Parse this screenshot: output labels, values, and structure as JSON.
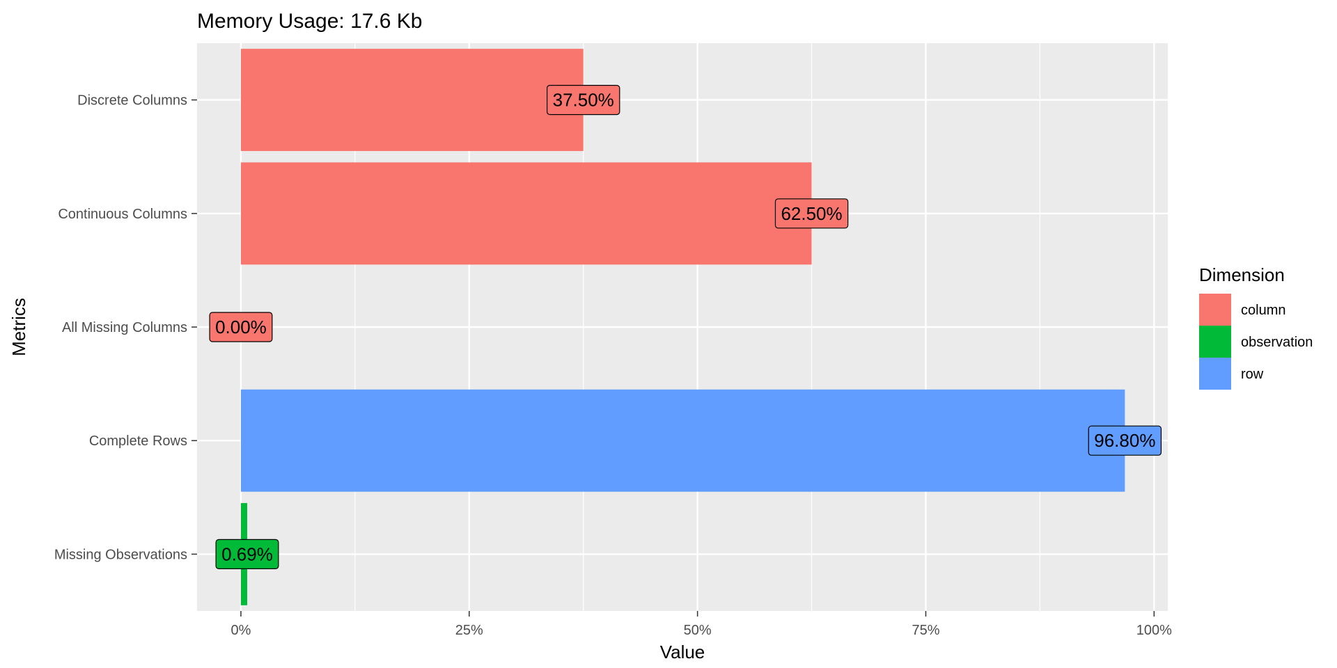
{
  "chart_data": {
    "type": "bar",
    "orientation": "horizontal",
    "title": "Memory Usage: 17.6 Kb",
    "xlabel": "Value",
    "ylabel": "Metrics",
    "xlim": [
      -0.048,
      1.015
    ],
    "x_ticks": [
      0,
      0.25,
      0.5,
      0.75,
      1.0
    ],
    "x_tick_labels": [
      "0%",
      "25%",
      "50%",
      "75%",
      "100%"
    ],
    "grid": true,
    "categories": [
      "Discrete Columns",
      "Continuous Columns",
      "All Missing Columns",
      "Complete Rows",
      "Missing Observations"
    ],
    "values": [
      0.375,
      0.625,
      0.0,
      0.968,
      0.0069
    ],
    "data_labels": [
      "37.50%",
      "62.50%",
      "0.00%",
      "96.80%",
      "0.69%"
    ],
    "groups": [
      "column",
      "column",
      "column",
      "row",
      "observation"
    ],
    "legend": {
      "title": "Dimension",
      "placement": "right",
      "entries": [
        {
          "label": "column",
          "color": "#F8766D"
        },
        {
          "label": "observation",
          "color": "#00BA38"
        },
        {
          "label": "row",
          "color": "#619CFF"
        }
      ]
    }
  }
}
